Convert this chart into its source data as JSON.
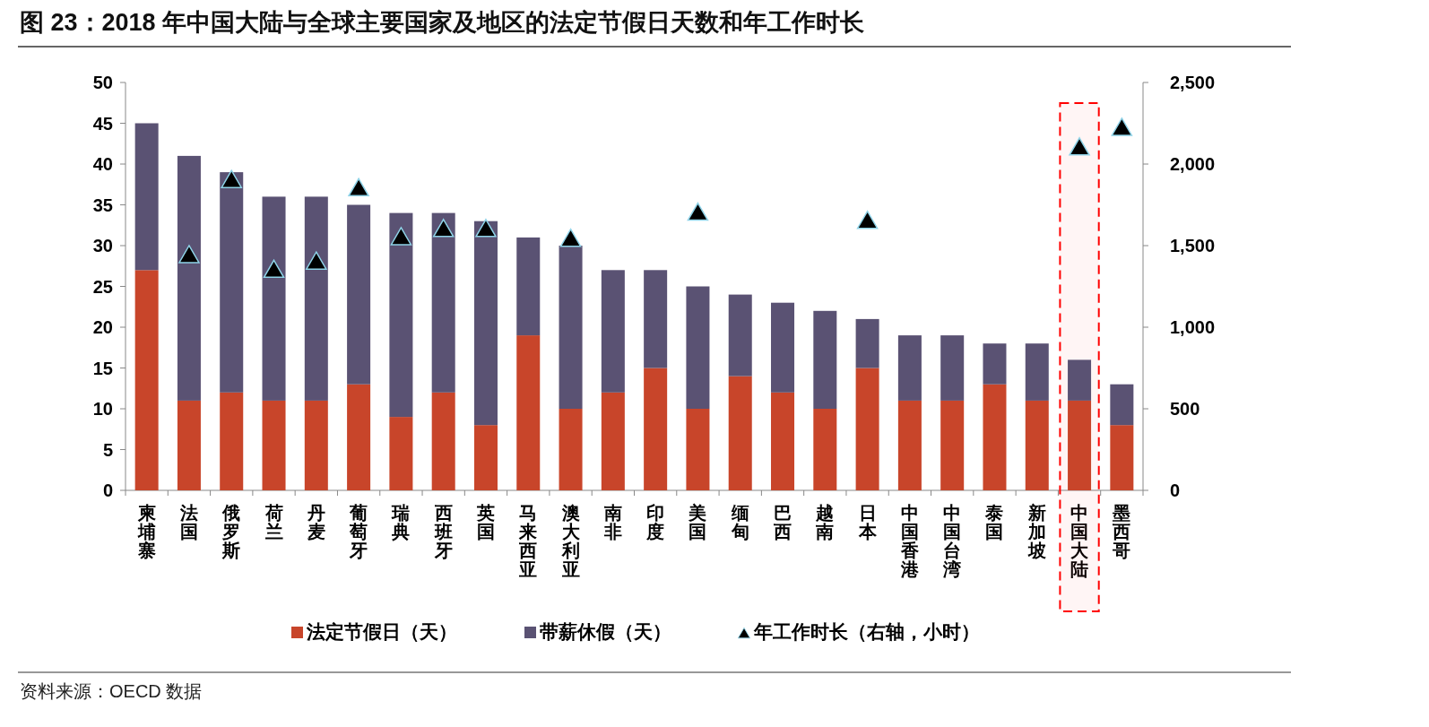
{
  "chart_data": {
    "type": "bar",
    "stacked": true,
    "title": "图 23：2018 年中国大陆与全球主要国家及地区的法定节假日天数和年工作时长",
    "categories": [
      "柬埔寨",
      "法国",
      "俄罗斯",
      "荷兰",
      "丹麦",
      "葡萄牙",
      "瑞典",
      "西班牙",
      "英国",
      "马来西亚",
      "澳大利亚",
      "南非",
      "印度",
      "美国",
      "缅甸",
      "巴西",
      "越南",
      "日本",
      "中国香港",
      "中国台湾",
      "泰国",
      "新加坡",
      "中国大陆",
      "墨西哥"
    ],
    "series": [
      {
        "name": "法定节假日（天）",
        "color": "#c8452a",
        "values": [
          27,
          11,
          12,
          11,
          11,
          13,
          9,
          12,
          8,
          19,
          10,
          12,
          15,
          10,
          14,
          12,
          10,
          15,
          11,
          11,
          13,
          11,
          11,
          8
        ]
      },
      {
        "name": "带薪休假（天）",
        "color": "#5a5273",
        "values": [
          18,
          30,
          27,
          25,
          25,
          22,
          25,
          22,
          25,
          12,
          20,
          15,
          12,
          15,
          10,
          11,
          12,
          6,
          8,
          8,
          5,
          7,
          5,
          5
        ]
      },
      {
        "name": "年工作时长（右轴，小时）",
        "type": "scatter",
        "axis": "y2",
        "marker": "triangle",
        "color": "#000000",
        "values": [
          null,
          1440,
          1900,
          1350,
          1400,
          1850,
          1550,
          1600,
          1600,
          null,
          1540,
          null,
          null,
          1700,
          null,
          null,
          null,
          1650,
          null,
          null,
          null,
          null,
          2100,
          2220
        ]
      }
    ],
    "ylim": [
      0,
      50
    ],
    "yticks": [
      0,
      5,
      10,
      15,
      20,
      25,
      30,
      35,
      40,
      45,
      50
    ],
    "y2lim": [
      0,
      2500
    ],
    "y2ticks": [
      0,
      {
        "value": 500,
        "label": "500"
      },
      {
        "value": 1000,
        "label": "1,000"
      },
      {
        "value": 1500,
        "label": "1,500"
      },
      {
        "value": 2000,
        "label": "2,000"
      },
      {
        "value": 2500,
        "label": "2,500"
      }
    ],
    "bands": [
      {
        "axis": "x",
        "from": "中国大陆",
        "to": "中国大陆",
        "color": "#ff0000"
      }
    ],
    "grid": false,
    "legend": "bottom",
    "annotations": [
      "资料来源：OECD 数据"
    ]
  }
}
